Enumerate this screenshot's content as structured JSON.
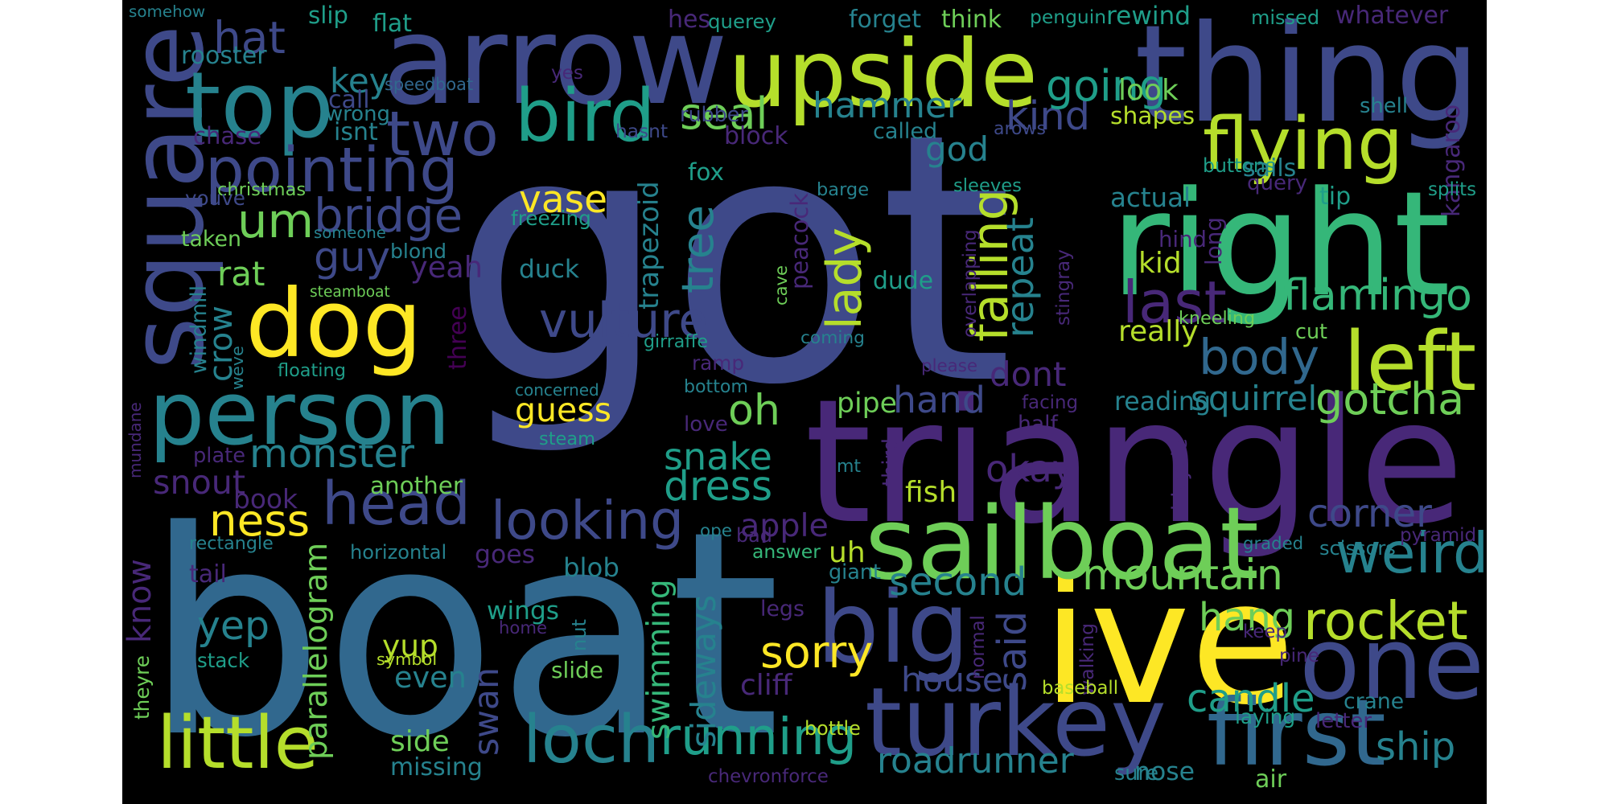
{
  "palette": {
    "purple": "#482878",
    "indigo": "#3e4989",
    "blue": "#31688e",
    "teal": "#26828e",
    "cyan": "#1f9e89",
    "green": "#35b779",
    "lime": "#6ece58",
    "yellow": "#b5de2b",
    "bright": "#fde725",
    "dark": "#440154"
  },
  "words": [
    {
      "text": "got",
      "color": "indigo"
    },
    {
      "text": "boat",
      "color": "blue"
    },
    {
      "text": "triangle",
      "color": "purple"
    },
    {
      "text": "thing",
      "color": "indigo"
    },
    {
      "text": "arrow",
      "color": "indigo"
    },
    {
      "text": "right",
      "color": "green"
    },
    {
      "text": "ive",
      "color": "bright"
    },
    {
      "text": "upside",
      "color": "yellow"
    },
    {
      "text": "square",
      "color": "indigo"
    },
    {
      "text": "dog",
      "color": "bright"
    },
    {
      "text": "person",
      "color": "teal"
    },
    {
      "text": "sailboat",
      "color": "lime"
    },
    {
      "text": "one",
      "color": "indigo"
    },
    {
      "text": "big",
      "color": "indigo"
    },
    {
      "text": "turkey",
      "color": "indigo"
    },
    {
      "text": "first",
      "color": "blue"
    },
    {
      "text": "head",
      "color": "indigo"
    },
    {
      "text": "top",
      "color": "teal"
    },
    {
      "text": "left",
      "color": "yellow"
    },
    {
      "text": "weird",
      "color": "teal"
    },
    {
      "text": "little",
      "color": "yellow"
    },
    {
      "text": "loch",
      "color": "teal"
    },
    {
      "text": "running",
      "color": "cyan"
    },
    {
      "text": "bird",
      "color": "cyan"
    },
    {
      "text": "flying",
      "color": "yellow"
    },
    {
      "text": "two",
      "color": "indigo"
    },
    {
      "text": "pointing",
      "color": "indigo"
    },
    {
      "text": "um",
      "color": "lime"
    },
    {
      "text": "looking",
      "color": "indigo"
    },
    {
      "text": "body",
      "color": "blue"
    },
    {
      "text": "rocket",
      "color": "yellow"
    },
    {
      "text": "mountain",
      "color": "lime"
    },
    {
      "text": "roadrunner",
      "color": "teal"
    },
    {
      "text": "ness",
      "color": "bright"
    },
    {
      "text": "monster",
      "color": "teal"
    },
    {
      "text": "vulture",
      "color": "indigo"
    },
    {
      "text": "tree",
      "color": "teal"
    },
    {
      "text": "hammer",
      "color": "teal"
    },
    {
      "text": "bridge",
      "color": "indigo"
    },
    {
      "text": "flamingo",
      "color": "green"
    },
    {
      "text": "last",
      "color": "purple"
    },
    {
      "text": "lady",
      "color": "yellow"
    },
    {
      "text": "falling",
      "color": "yellow"
    },
    {
      "text": "repeat",
      "color": "teal"
    },
    {
      "text": "gotcha",
      "color": "lime"
    },
    {
      "text": "seal",
      "color": "lime"
    },
    {
      "text": "hat",
      "color": "indigo"
    },
    {
      "text": "guy",
      "color": "indigo"
    },
    {
      "text": "kind",
      "color": "indigo"
    },
    {
      "text": "going",
      "color": "cyan"
    },
    {
      "text": "corner",
      "color": "indigo"
    },
    {
      "text": "sorry",
      "color": "bright"
    },
    {
      "text": "dress",
      "color": "cyan"
    },
    {
      "text": "snake",
      "color": "cyan"
    },
    {
      "text": "candle",
      "color": "cyan"
    },
    {
      "text": "swan",
      "color": "indigo"
    },
    {
      "text": "second",
      "color": "teal"
    },
    {
      "text": "hang",
      "color": "lime"
    },
    {
      "text": "ship",
      "color": "teal"
    },
    {
      "text": "said",
      "color": "indigo"
    },
    {
      "text": "house",
      "color": "indigo"
    },
    {
      "text": "oh",
      "color": "lime"
    },
    {
      "text": "hand",
      "color": "indigo"
    },
    {
      "text": "yep",
      "color": "teal"
    },
    {
      "text": "guess",
      "color": "bright"
    },
    {
      "text": "vase",
      "color": "bright"
    },
    {
      "text": "swimming",
      "color": "green"
    },
    {
      "text": "sideways",
      "color": "teal"
    },
    {
      "text": "squirrel",
      "color": "teal"
    },
    {
      "text": "okay",
      "color": "purple"
    },
    {
      "text": "snout",
      "color": "purple"
    },
    {
      "text": "yeah",
      "color": "purple"
    },
    {
      "text": "rat",
      "color": "lime"
    },
    {
      "text": "key",
      "color": "teal"
    },
    {
      "text": "god",
      "color": "teal"
    },
    {
      "text": "dont",
      "color": "purple"
    },
    {
      "text": "apple",
      "color": "purple"
    },
    {
      "text": "parallelogram",
      "color": "lime"
    },
    {
      "text": "know",
      "color": "purple"
    },
    {
      "text": "kangaroo",
      "color": "purple"
    },
    {
      "text": "crow",
      "color": "teal"
    },
    {
      "text": "even",
      "color": "teal"
    },
    {
      "text": "yup",
      "color": "yellow"
    },
    {
      "text": "side",
      "color": "lime"
    },
    {
      "text": "wings",
      "color": "cyan"
    },
    {
      "text": "pipe",
      "color": "lime"
    },
    {
      "text": "rooster",
      "color": "teal"
    },
    {
      "text": "shapes",
      "color": "yellow"
    },
    {
      "text": "look",
      "color": "lime"
    },
    {
      "text": "reading",
      "color": "teal"
    },
    {
      "text": "actual",
      "color": "teal"
    },
    {
      "text": "really",
      "color": "yellow"
    },
    {
      "text": "fish",
      "color": "yellow"
    },
    {
      "text": "nose",
      "color": "teal"
    },
    {
      "text": "cliff",
      "color": "purple"
    },
    {
      "text": "missing",
      "color": "teal"
    },
    {
      "text": "uh",
      "color": "yellow"
    },
    {
      "text": "another",
      "color": "lime"
    },
    {
      "text": "book",
      "color": "purple"
    },
    {
      "text": "duck",
      "color": "teal"
    },
    {
      "text": "trapezoid",
      "color": "teal"
    },
    {
      "text": "peacock",
      "color": "purple"
    },
    {
      "text": "dude",
      "color": "cyan"
    },
    {
      "text": "kid",
      "color": "yellow"
    },
    {
      "text": "three",
      "color": "dark"
    },
    {
      "text": "blob",
      "color": "teal"
    },
    {
      "text": "goes",
      "color": "purple"
    },
    {
      "text": "rewind",
      "color": "cyan"
    },
    {
      "text": "whatever",
      "color": "purple"
    },
    {
      "text": "penguin",
      "color": "cyan"
    },
    {
      "text": "think",
      "color": "lime"
    },
    {
      "text": "forget",
      "color": "teal"
    },
    {
      "text": "missed",
      "color": "cyan"
    },
    {
      "text": "querey",
      "color": "cyan"
    },
    {
      "text": "hes",
      "color": "purple"
    },
    {
      "text": "flat",
      "color": "cyan"
    },
    {
      "text": "slip",
      "color": "cyan"
    },
    {
      "text": "somehow",
      "color": "teal"
    },
    {
      "text": "call",
      "color": "indigo"
    },
    {
      "text": "wrong",
      "color": "teal"
    },
    {
      "text": "isnt",
      "color": "teal"
    },
    {
      "text": "chase",
      "color": "purple"
    },
    {
      "text": "speedboat",
      "color": "blue"
    },
    {
      "text": "yes",
      "color": "purple"
    },
    {
      "text": "rubber",
      "color": "indigo"
    },
    {
      "text": "hasnt",
      "color": "indigo"
    },
    {
      "text": "block",
      "color": "purple"
    },
    {
      "text": "called",
      "color": "teal"
    },
    {
      "text": "arows",
      "color": "indigo"
    },
    {
      "text": "shell",
      "color": "teal"
    },
    {
      "text": "buttons",
      "color": "cyan"
    },
    {
      "text": "sails",
      "color": "teal"
    },
    {
      "text": "query",
      "color": "purple"
    },
    {
      "text": "tip",
      "color": "cyan"
    },
    {
      "text": "splits",
      "color": "cyan"
    },
    {
      "text": "christmas",
      "color": "lime"
    },
    {
      "text": "youve",
      "color": "indigo"
    },
    {
      "text": "fox",
      "color": "cyan"
    },
    {
      "text": "freezing",
      "color": "cyan"
    },
    {
      "text": "barge",
      "color": "teal"
    },
    {
      "text": "sleeves",
      "color": "cyan"
    },
    {
      "text": "taken",
      "color": "lime"
    },
    {
      "text": "someone",
      "color": "teal"
    },
    {
      "text": "blond",
      "color": "teal"
    },
    {
      "text": "hind",
      "color": "purple"
    },
    {
      "text": "long",
      "color": "purple"
    },
    {
      "text": "overlapping",
      "color": "purple"
    },
    {
      "text": "stingray",
      "color": "purple"
    },
    {
      "text": "cave",
      "color": "lime"
    },
    {
      "text": "steamboat",
      "color": "lime"
    },
    {
      "text": "kneeling",
      "color": "lime"
    },
    {
      "text": "cut",
      "color": "lime"
    },
    {
      "text": "windmill",
      "color": "teal"
    },
    {
      "text": "girraffe",
      "color": "cyan"
    },
    {
      "text": "coming",
      "color": "teal"
    },
    {
      "text": "weve",
      "color": "teal"
    },
    {
      "text": "floating",
      "color": "cyan"
    },
    {
      "text": "ramp",
      "color": "purple"
    },
    {
      "text": "please",
      "color": "purple"
    },
    {
      "text": "facing",
      "color": "purple"
    },
    {
      "text": "mundane",
      "color": "purple"
    },
    {
      "text": "concerned",
      "color": "teal"
    },
    {
      "text": "bottom",
      "color": "teal"
    },
    {
      "text": "half",
      "color": "purple"
    },
    {
      "text": "plate",
      "color": "purple"
    },
    {
      "text": "steam",
      "color": "cyan"
    },
    {
      "text": "love",
      "color": "purple"
    },
    {
      "text": "mt",
      "color": "teal"
    },
    {
      "text": "third",
      "color": "purple"
    },
    {
      "text": "bicycle",
      "color": "purple"
    },
    {
      "text": "ope",
      "color": "teal"
    },
    {
      "text": "bad",
      "color": "purple"
    },
    {
      "text": "rectangle",
      "color": "teal"
    },
    {
      "text": "horizontal",
      "color": "teal"
    },
    {
      "text": "answer",
      "color": "green"
    },
    {
      "text": "graded",
      "color": "teal"
    },
    {
      "text": "scissors",
      "color": "teal"
    },
    {
      "text": "pyramid",
      "color": "purple"
    },
    {
      "text": "giant",
      "color": "teal"
    },
    {
      "text": "tail",
      "color": "purple"
    },
    {
      "text": "home",
      "color": "purple"
    },
    {
      "text": "nut",
      "color": "teal"
    },
    {
      "text": "legs",
      "color": "purple"
    },
    {
      "text": "normal",
      "color": "purple"
    },
    {
      "text": "walking",
      "color": "purple"
    },
    {
      "text": "keep",
      "color": "purple"
    },
    {
      "text": "pine",
      "color": "purple"
    },
    {
      "text": "theyre",
      "color": "lime"
    },
    {
      "text": "stack",
      "color": "cyan"
    },
    {
      "text": "symbol",
      "color": "yellow"
    },
    {
      "text": "slide",
      "color": "lime"
    },
    {
      "text": "baseball",
      "color": "yellow"
    },
    {
      "text": "laying",
      "color": "cyan"
    },
    {
      "text": "letter",
      "color": "purple"
    },
    {
      "text": "bottle",
      "color": "yellow"
    },
    {
      "text": "chevronforce",
      "color": "purple"
    },
    {
      "text": "sure",
      "color": "teal"
    },
    {
      "text": "air",
      "color": "lime"
    },
    {
      "text": "crane",
      "color": "teal"
    }
  ]
}
